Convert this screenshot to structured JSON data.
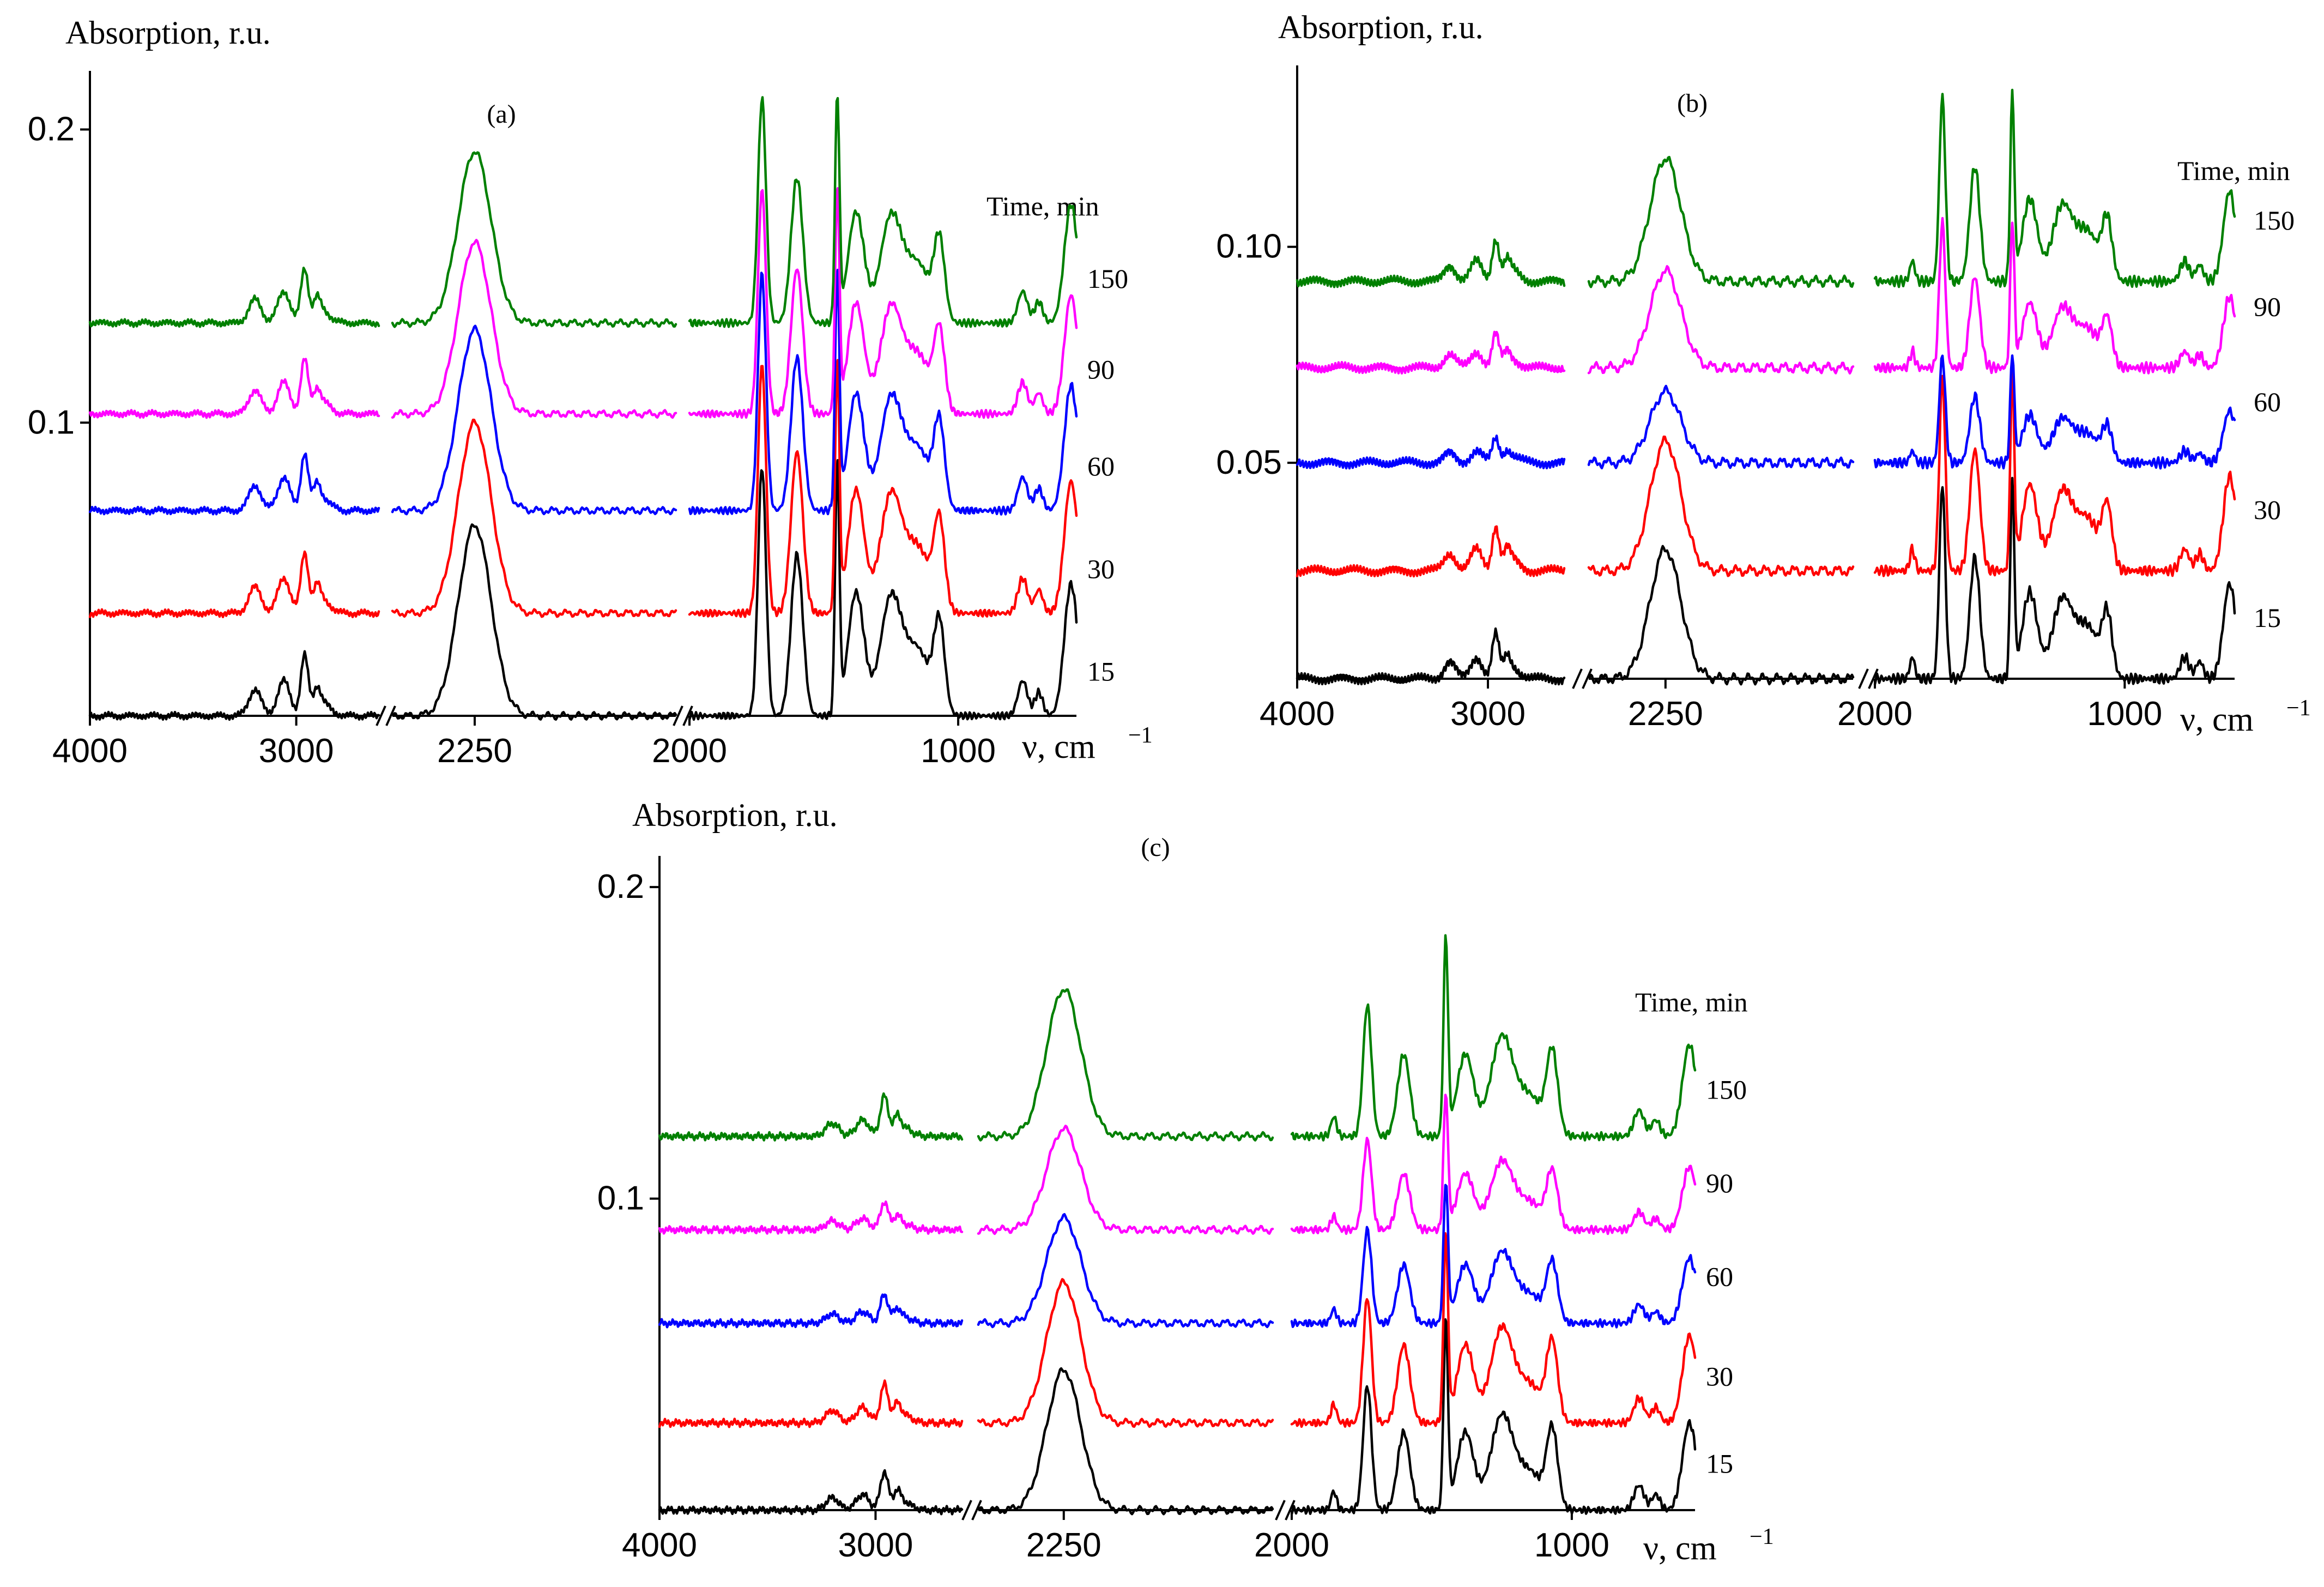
{
  "colors": {
    "15": "#000000",
    "30": "#ff0000",
    "60": "#0000ff",
    "90": "#ff00ff",
    "150": "#008000"
  },
  "chart_data": [
    {
      "type": "line",
      "panel_label": "(a)",
      "ylabel": "Absorption, r.u.",
      "xlabel": "ν, cm",
      "xlabel_sup": "−1",
      "x_tick_labels": [
        "4000",
        "3000",
        "2250",
        "2000",
        "1000"
      ],
      "y_tick_labels": [
        "0.1",
        "0.2"
      ],
      "y_ticks": [
        0.1,
        0.2
      ],
      "ylim": [
        0.0,
        0.22
      ],
      "x_segments": [
        [
          4000,
          2600
        ],
        [
          2340,
          2030
        ],
        [
          2000,
          560
        ]
      ],
      "legend_title": "Time, min",
      "series": [
        {
          "name": "15",
          "offset": 0.0,
          "scale": 1.0
        },
        {
          "name": "30",
          "offset": 0.035,
          "scale": 1.0
        },
        {
          "name": "60",
          "offset": 0.07,
          "scale": 0.95
        },
        {
          "name": "90",
          "offset": 0.103,
          "scale": 0.9
        },
        {
          "name": "150",
          "offset": 0.134,
          "scale": 0.9
        }
      ],
      "peaks": [
        [
          3200,
          0.009,
          30
        ],
        [
          3060,
          0.012,
          30
        ],
        [
          2880,
          0.005,
          40
        ],
        [
          2960,
          0.02,
          18
        ],
        [
          2900,
          0.006,
          15
        ],
        [
          2250,
          0.065,
          18
        ],
        [
          1730,
          0.085,
          15
        ],
        [
          1600,
          0.055,
          22
        ],
        [
          1450,
          0.085,
          8
        ],
        [
          1380,
          0.042,
          30
        ],
        [
          1250,
          0.04,
          40
        ],
        [
          1150,
          0.022,
          45
        ],
        [
          1070,
          0.03,
          20
        ],
        [
          760,
          0.012,
          18
        ],
        [
          700,
          0.008,
          15
        ],
        [
          580,
          0.045,
          25
        ]
      ]
    },
    {
      "type": "line",
      "panel_label": "(b)",
      "ylabel": "Absorption, r.u.",
      "xlabel": "ν, cm",
      "xlabel_sup": "−1",
      "x_tick_labels": [
        "4000",
        "3000",
        "2250",
        "2000",
        "1000"
      ],
      "y_tick_labels": [
        "0.05",
        "0.10"
      ],
      "y_ticks": [
        0.05,
        0.1
      ],
      "ylim": [
        0.0,
        0.142
      ],
      "x_segments": [
        [
          4000,
          2600
        ],
        [
          2340,
          2030
        ],
        [
          2000,
          560
        ]
      ],
      "legend_title": "Time, min",
      "series": [
        {
          "name": "15",
          "offset": 0.0,
          "scale": 1.0
        },
        {
          "name": "30",
          "offset": 0.025,
          "scale": 1.0
        },
        {
          "name": "60",
          "offset": 0.05,
          "scale": 0.55
        },
        {
          "name": "90",
          "offset": 0.072,
          "scale": 0.75
        },
        {
          "name": "150",
          "offset": 0.092,
          "scale": 0.95
        }
      ],
      "peaks": [
        [
          3200,
          0.004,
          30
        ],
        [
          3060,
          0.005,
          30
        ],
        [
          2880,
          0.003,
          40
        ],
        [
          2960,
          0.01,
          18
        ],
        [
          2900,
          0.003,
          15
        ],
        [
          2250,
          0.03,
          18
        ],
        [
          1850,
          0.005,
          10
        ],
        [
          1730,
          0.045,
          12
        ],
        [
          1600,
          0.028,
          20
        ],
        [
          1450,
          0.045,
          8
        ],
        [
          1380,
          0.02,
          30
        ],
        [
          1250,
          0.018,
          40
        ],
        [
          1150,
          0.012,
          45
        ],
        [
          1070,
          0.014,
          20
        ],
        [
          760,
          0.005,
          18
        ],
        [
          700,
          0.004,
          15
        ],
        [
          580,
          0.022,
          25
        ]
      ]
    },
    {
      "type": "line",
      "panel_label": "(c)",
      "ylabel": "Absorption, r.u.",
      "xlabel": "ν, cm",
      "xlabel_sup": "−1",
      "x_tick_labels": [
        "4000",
        "3000",
        "2250",
        "2000",
        "1000"
      ],
      "y_tick_labels": [
        "0.1",
        "0.2"
      ],
      "y_ticks": [
        0.1,
        0.2
      ],
      "ylim": [
        0.0,
        0.21
      ],
      "x_segments": [
        [
          4000,
          2600
        ],
        [
          2340,
          2030
        ],
        [
          2000,
          560
        ]
      ],
      "legend_title": "Time, min",
      "series": [
        {
          "name": "15",
          "offset": 0.0,
          "scale": 1.0
        },
        {
          "name": "30",
          "offset": 0.028,
          "scale": 1.0
        },
        {
          "name": "60",
          "offset": 0.06,
          "scale": 0.75
        },
        {
          "name": "90",
          "offset": 0.09,
          "scale": 0.72
        },
        {
          "name": "150",
          "offset": 0.12,
          "scale": 1.05
        }
      ],
      "peaks": [
        [
          3200,
          0.004,
          30
        ],
        [
          3060,
          0.005,
          30
        ],
        [
          2880,
          0.003,
          40
        ],
        [
          2960,
          0.012,
          18
        ],
        [
          2900,
          0.004,
          15
        ],
        [
          2250,
          0.045,
          18
        ],
        [
          1850,
          0.006,
          10
        ],
        [
          1730,
          0.04,
          15
        ],
        [
          1600,
          0.025,
          22
        ],
        [
          1450,
          0.06,
          8
        ],
        [
          1380,
          0.025,
          30
        ],
        [
          1250,
          0.03,
          40
        ],
        [
          1150,
          0.012,
          45
        ],
        [
          1070,
          0.025,
          20
        ],
        [
          760,
          0.008,
          18
        ],
        [
          700,
          0.005,
          15
        ],
        [
          580,
          0.028,
          25
        ]
      ]
    }
  ]
}
